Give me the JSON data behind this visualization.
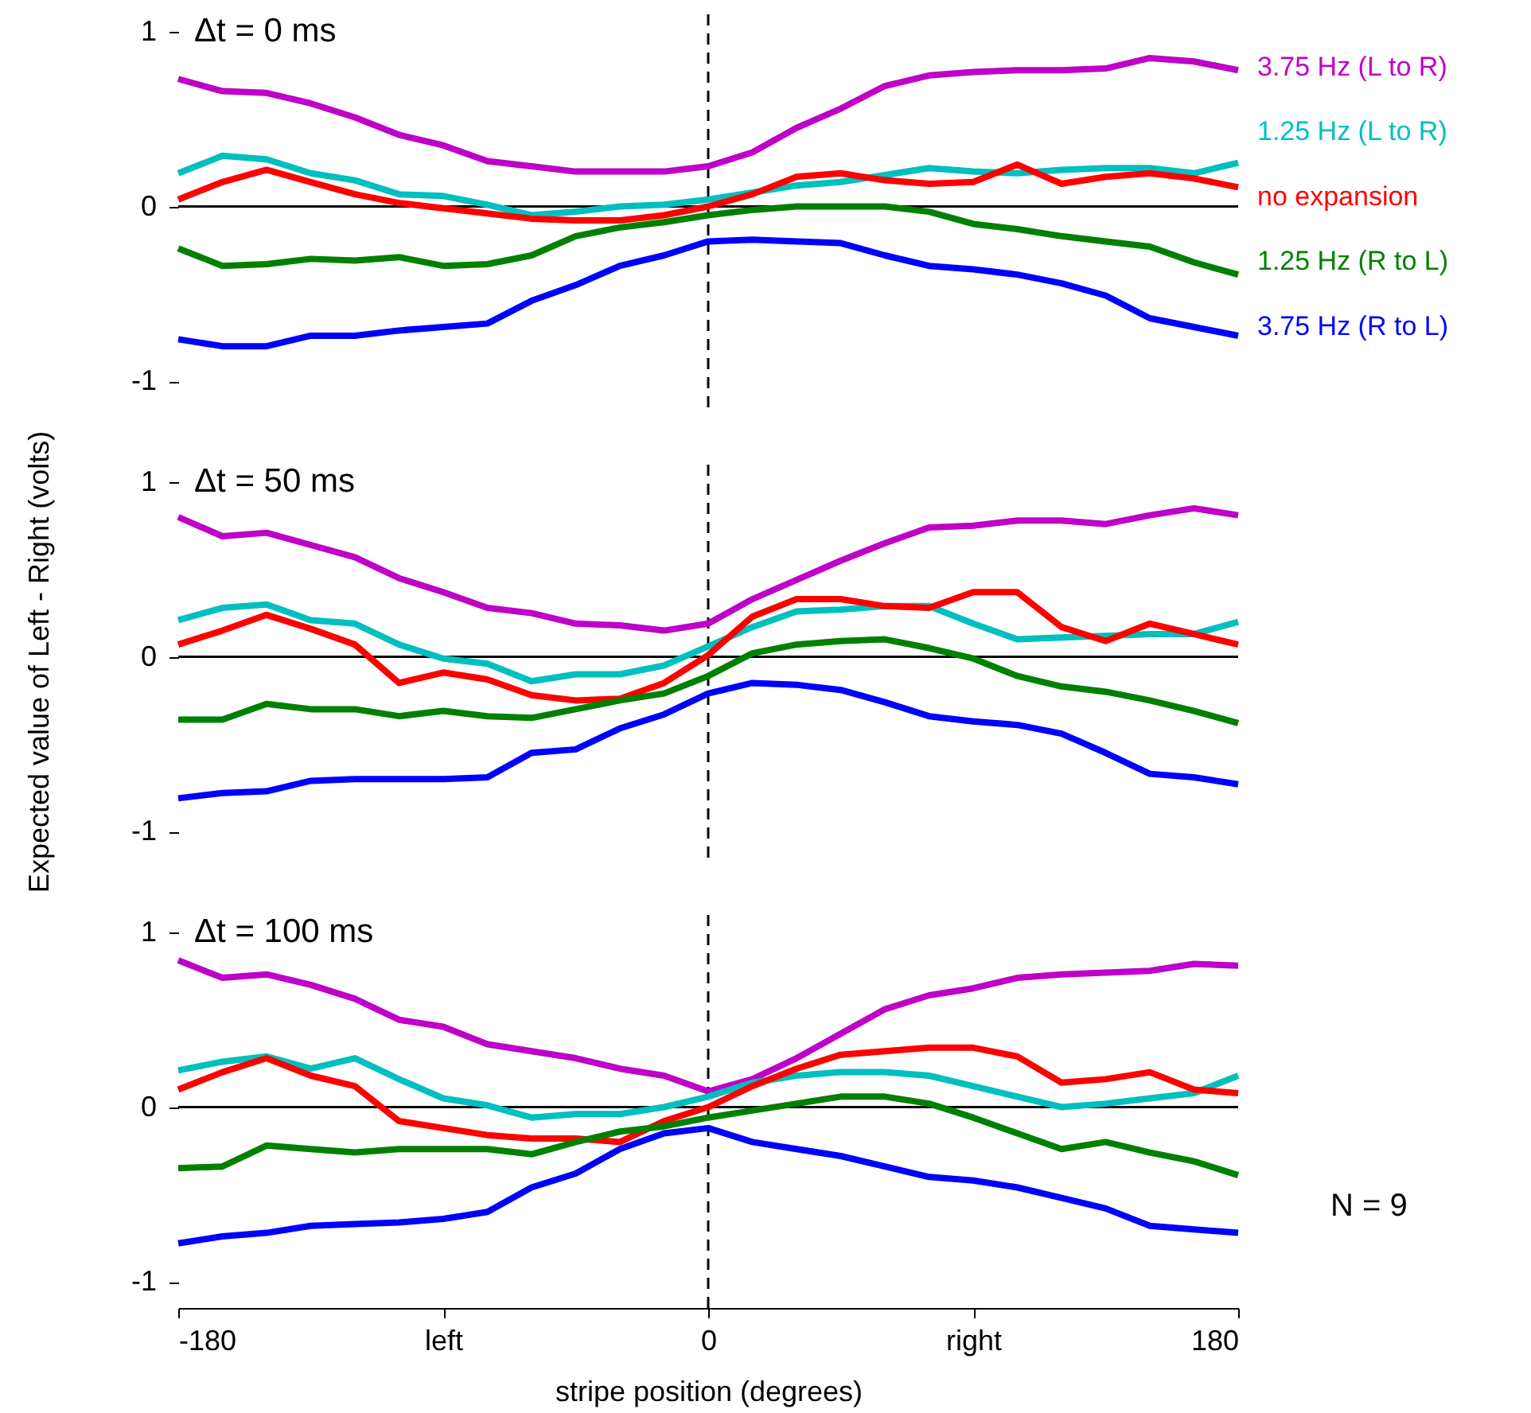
{
  "chart_data": [
    {
      "type": "line",
      "title": "Δt = 0 ms",
      "legend": "right",
      "tick_labels": "y",
      "xlim": [
        -180,
        180
      ],
      "ylim": [
        -1.15,
        1.1
      ],
      "yticks": [
        -1,
        0,
        1
      ],
      "x": [
        -180,
        -165,
        -150,
        -135,
        -120,
        -105,
        -90,
        -75,
        -60,
        -45,
        -30,
        -15,
        0,
        15,
        30,
        45,
        60,
        75,
        90,
        105,
        120,
        135,
        150,
        165,
        180
      ],
      "ref_lines": [
        {
          "axis": "y",
          "value": 0,
          "color": "#000000"
        },
        {
          "axis": "x",
          "value": 0,
          "color": "#000000",
          "line_style": "dashed"
        }
      ],
      "series": [
        {
          "name": "3.75 Hz (L to R)",
          "color": "#bf00c8",
          "values": [
            0.73,
            0.66,
            0.65,
            0.59,
            0.51,
            0.41,
            0.35,
            0.26,
            0.23,
            0.2,
            0.2,
            0.2,
            0.23,
            0.31,
            0.45,
            0.56,
            0.69,
            0.75,
            0.77,
            0.78,
            0.78,
            0.79,
            0.85,
            0.83,
            0.78
          ]
        },
        {
          "name": "1.25 Hz (L to R)",
          "color": "#00bfbf",
          "values": [
            0.19,
            0.29,
            0.27,
            0.19,
            0.15,
            0.07,
            0.06,
            0.01,
            -0.05,
            -0.03,
            0,
            0.01,
            0.04,
            0.08,
            0.12,
            0.14,
            0.18,
            0.22,
            0.2,
            0.19,
            0.21,
            0.22,
            0.22,
            0.19,
            0.25
          ]
        },
        {
          "name": "no expansion",
          "color": "#ff0000",
          "values": [
            0.04,
            0.14,
            0.21,
            0.14,
            0.07,
            0.02,
            -0.01,
            -0.04,
            -0.07,
            -0.08,
            -0.08,
            -0.05,
            0,
            0.07,
            0.17,
            0.19,
            0.15,
            0.13,
            0.14,
            0.24,
            0.13,
            0.17,
            0.19,
            0.16,
            0.11
          ]
        },
        {
          "name": "1.25 Hz (R to L)",
          "color": "#008000",
          "values": [
            -0.24,
            -0.34,
            -0.33,
            -0.3,
            -0.31,
            -0.29,
            -0.34,
            -0.33,
            -0.28,
            -0.17,
            -0.12,
            -0.09,
            -0.05,
            -0.02,
            0,
            0,
            0,
            -0.03,
            -0.1,
            -0.13,
            -0.17,
            -0.2,
            -0.23,
            -0.32,
            -0.39
          ]
        },
        {
          "name": "3.75 Hz (R to L)",
          "color": "#0000ff",
          "values": [
            -0.76,
            -0.8,
            -0.8,
            -0.74,
            -0.74,
            -0.71,
            -0.69,
            -0.67,
            -0.54,
            -0.45,
            -0.34,
            -0.28,
            -0.2,
            -0.19,
            -0.2,
            -0.21,
            -0.28,
            -0.34,
            -0.36,
            -0.39,
            -0.44,
            -0.51,
            -0.64,
            -0.69,
            -0.74
          ]
        }
      ]
    },
    {
      "type": "line",
      "title": "Δt = 50 ms",
      "ylabel": "Expected value of Left - Right  (volts)",
      "tick_labels": "y",
      "xlim": [
        -180,
        180
      ],
      "ylim": [
        -1.15,
        1.1
      ],
      "yticks": [
        -1,
        0,
        1
      ],
      "x": [
        -180,
        -165,
        -150,
        -135,
        -120,
        -105,
        -90,
        -75,
        -60,
        -45,
        -30,
        -15,
        0,
        15,
        30,
        45,
        60,
        75,
        90,
        105,
        120,
        135,
        150,
        165,
        180
      ],
      "ref_lines": [
        {
          "axis": "y",
          "value": 0,
          "color": "#000000"
        },
        {
          "axis": "x",
          "value": 0,
          "color": "#000000",
          "line_style": "dashed"
        }
      ],
      "series": [
        {
          "color": "#bf00c8",
          "values": [
            0.8,
            0.69,
            0.71,
            0.64,
            0.57,
            0.45,
            0.37,
            0.28,
            0.25,
            0.19,
            0.18,
            0.15,
            0.19,
            0.33,
            0.44,
            0.55,
            0.65,
            0.74,
            0.75,
            0.78,
            0.78,
            0.76,
            0.81,
            0.85,
            0.81
          ]
        },
        {
          "color": "#00bfbf",
          "values": [
            0.21,
            0.28,
            0.3,
            0.21,
            0.19,
            0.07,
            -0.01,
            -0.04,
            -0.14,
            -0.1,
            -0.1,
            -0.05,
            0.06,
            0.17,
            0.26,
            0.27,
            0.29,
            0.29,
            0.19,
            0.1,
            0.11,
            0.12,
            0.13,
            0.13,
            0.2
          ]
        },
        {
          "color": "#ff0000",
          "values": [
            0.07,
            0.15,
            0.24,
            0.16,
            0.07,
            -0.15,
            -0.09,
            -0.13,
            -0.22,
            -0.25,
            -0.24,
            -0.15,
            0.01,
            0.23,
            0.33,
            0.33,
            0.29,
            0.28,
            0.37,
            0.37,
            0.17,
            0.09,
            0.19,
            0.13,
            0.07
          ]
        },
        {
          "color": "#008000",
          "values": [
            -0.36,
            -0.36,
            -0.27,
            -0.3,
            -0.3,
            -0.34,
            -0.31,
            -0.34,
            -0.35,
            -0.3,
            -0.25,
            -0.21,
            -0.11,
            0.02,
            0.07,
            0.09,
            0.1,
            0.05,
            -0.01,
            -0.11,
            -0.17,
            -0.2,
            -0.25,
            -0.31,
            -0.38
          ]
        },
        {
          "color": "#0000ff",
          "values": [
            -0.81,
            -0.78,
            -0.77,
            -0.71,
            -0.7,
            -0.7,
            -0.7,
            -0.69,
            -0.55,
            -0.53,
            -0.41,
            -0.33,
            -0.21,
            -0.15,
            -0.16,
            -0.19,
            -0.26,
            -0.34,
            -0.37,
            -0.39,
            -0.44,
            -0.55,
            -0.67,
            -0.69,
            -0.73
          ]
        }
      ]
    },
    {
      "type": "line",
      "title": "Δt = 100 ms",
      "xlabel": "stripe position (degrees)",
      "annotations": [
        "N = 9"
      ],
      "xlim": [
        -180,
        180
      ],
      "xticks": [
        -180,
        {
          "value": -90,
          "label": "left"
        },
        0,
        {
          "value": 90,
          "label": "right"
        },
        180
      ],
      "ylim": [
        -1.15,
        1.1
      ],
      "yticks": [
        -1,
        0,
        1
      ],
      "x": [
        -180,
        -165,
        -150,
        -135,
        -120,
        -105,
        -90,
        -75,
        -60,
        -45,
        -30,
        -15,
        0,
        15,
        30,
        45,
        60,
        75,
        90,
        105,
        120,
        135,
        150,
        165,
        180
      ],
      "ref_lines": [
        {
          "axis": "y",
          "value": 0,
          "color": "#000000"
        },
        {
          "axis": "x",
          "value": 0,
          "color": "#000000",
          "line_style": "dashed"
        }
      ],
      "series": [
        {
          "color": "#bf00c8",
          "values": [
            0.84,
            0.74,
            0.76,
            0.7,
            0.62,
            0.5,
            0.46,
            0.36,
            0.32,
            0.28,
            0.22,
            0.18,
            0.09,
            0.16,
            0.28,
            0.42,
            0.56,
            0.64,
            0.68,
            0.74,
            0.76,
            0.77,
            0.78,
            0.82,
            0.81
          ]
        },
        {
          "color": "#00bfbf",
          "values": [
            0.21,
            0.26,
            0.29,
            0.22,
            0.28,
            0.16,
            0.05,
            0.01,
            -0.06,
            -0.04,
            -0.04,
            0,
            0.06,
            0.14,
            0.18,
            0.2,
            0.2,
            0.18,
            0.12,
            0.06,
            0,
            0.02,
            0.05,
            0.08,
            0.18
          ]
        },
        {
          "color": "#ff0000",
          "values": [
            0.1,
            0.2,
            0.28,
            0.18,
            0.12,
            -0.08,
            -0.12,
            -0.16,
            -0.18,
            -0.18,
            -0.2,
            -0.08,
            0,
            0.12,
            0.22,
            0.3,
            0.32,
            0.34,
            0.34,
            0.29,
            0.14,
            0.16,
            0.2,
            0.1,
            0.08
          ]
        },
        {
          "color": "#008000",
          "values": [
            -0.35,
            -0.34,
            -0.22,
            -0.24,
            -0.26,
            -0.24,
            -0.24,
            -0.24,
            -0.27,
            -0.2,
            -0.14,
            -0.11,
            -0.06,
            -0.02,
            0.02,
            0.06,
            0.06,
            0.02,
            -0.06,
            -0.15,
            -0.24,
            -0.2,
            -0.26,
            -0.31,
            -0.39
          ]
        },
        {
          "color": "#0000ff",
          "values": [
            -0.78,
            -0.74,
            -0.72,
            -0.68,
            -0.67,
            -0.66,
            -0.64,
            -0.6,
            -0.46,
            -0.38,
            -0.24,
            -0.15,
            -0.12,
            -0.2,
            -0.24,
            -0.28,
            -0.34,
            -0.4,
            -0.42,
            -0.46,
            -0.52,
            -0.58,
            -0.68,
            -0.7,
            -0.72
          ]
        }
      ]
    }
  ]
}
